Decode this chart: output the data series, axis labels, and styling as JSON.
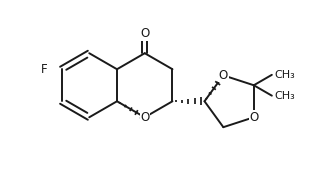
{
  "bg_color": "#ffffff",
  "line_color": "#1a1a1a",
  "line_width": 1.4,
  "font_size": 8.5,
  "figsize": [
    3.18,
    1.86
  ],
  "dpi": 100,
  "xlim": [
    -1.7,
    3.1
  ],
  "ylim": [
    -1.9,
    1.7
  ]
}
